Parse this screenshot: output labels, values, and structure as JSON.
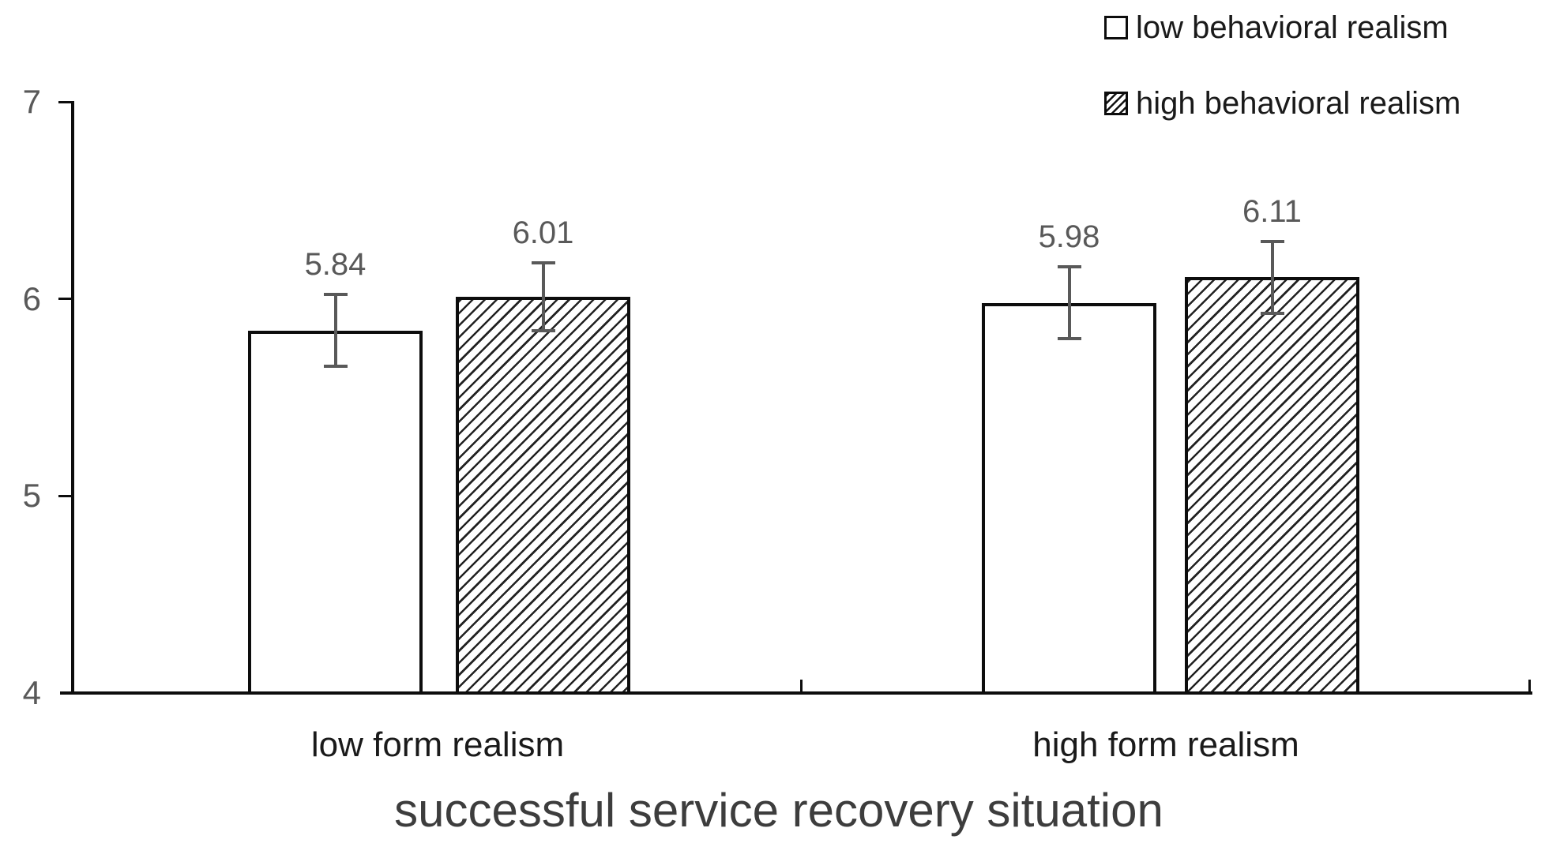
{
  "chart_data": {
    "type": "bar",
    "title": "successful service recovery situation",
    "categories": [
      "low form realism",
      "high form realism"
    ],
    "series": [
      {
        "name": "low behavioral realism",
        "fill": "white",
        "values": [
          5.84,
          5.98
        ],
        "errors": [
          0.19,
          0.19
        ]
      },
      {
        "name": "high behavioral realism",
        "fill": "diagonal-hatch",
        "values": [
          6.01,
          6.11
        ],
        "errors": [
          0.18,
          0.19
        ]
      }
    ],
    "value_labels": [
      "5.84",
      "6.01",
      "5.98",
      "6.11"
    ],
    "ylim": [
      4,
      7
    ],
    "yticks": [
      4,
      5,
      6,
      7
    ],
    "ytick_labels": [
      "4",
      "5",
      "6",
      "7"
    ],
    "xlabel": "successful service recovery situation",
    "ylabel": "",
    "grid": false,
    "legend_position": "top-right",
    "error_bars": true,
    "colors": {
      "background": "#ffffff",
      "bar_fill": "#ffffff",
      "bar_stroke": "#0d0d0d",
      "hatch_line": "#222222",
      "error_bar": "#595959",
      "value_label": "#595959",
      "tick_label": "#595959",
      "category_label": "#1a1a1a",
      "legend_text": "#1a1a1a",
      "title": "#3d3d3d"
    }
  }
}
